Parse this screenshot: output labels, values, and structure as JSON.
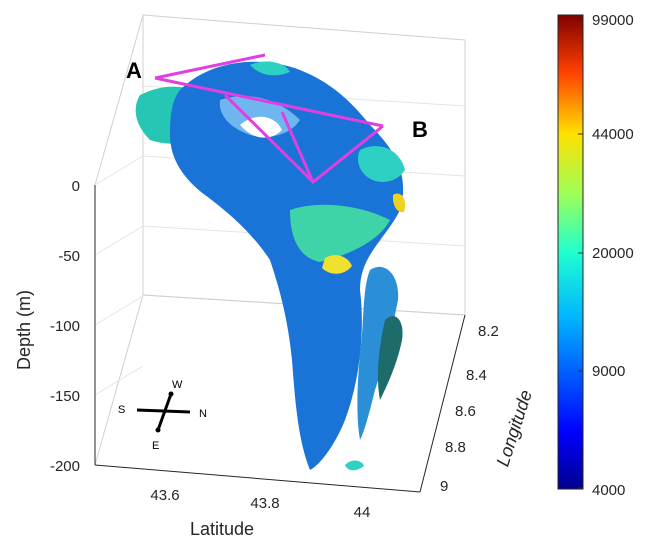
{
  "chart_data": {
    "type": "isosurface-3d",
    "xlabel": "Latitude",
    "ylabel": "Longitude",
    "zlabel": "Depth (m)",
    "xlim": [
      43.5,
      44.1
    ],
    "ylim": [
      8.2,
      9.0
    ],
    "zlim": [
      -200,
      40
    ],
    "x_ticks": [
      "43.6",
      "43.8",
      "44"
    ],
    "y_ticks": [
      "8.2",
      "8.4",
      "8.6",
      "8.8",
      "9"
    ],
    "z_ticks": [
      "0",
      "-50",
      "-100",
      "-150",
      "-200"
    ],
    "colorbar": {
      "ticks": [
        "99000",
        "44000",
        "20000",
        "9000",
        "4000"
      ],
      "colormap": "jet",
      "scale": "log"
    },
    "transect_points": [
      "A",
      "B"
    ],
    "compass": {
      "up": "W",
      "right": "N",
      "left": "S",
      "down": "E"
    },
    "colors": {
      "transect": "#e040e0",
      "surface_main": "#1a73d6",
      "surface_secondary": "#2fd0c4"
    }
  }
}
